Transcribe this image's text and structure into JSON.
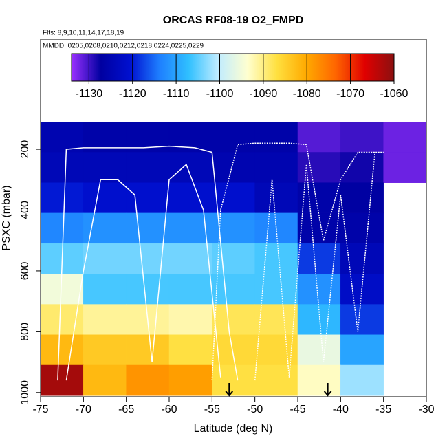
{
  "chart_data": {
    "type": "heatmap",
    "title": "ORCAS RF08-19 O2_FMPD",
    "subtitle": "Flts: 8,9,10,11,14,17,18,19",
    "annotation": "MMDD: 0205,0208,0210,0212,0218,0224,0225,0229",
    "x_label": "Latitude (deg N)",
    "y_label": "PSXC (mbar)",
    "xlim": [
      -75,
      -30
    ],
    "xticks": [
      -75,
      -70,
      -65,
      -60,
      -55,
      -50,
      -45,
      -40,
      -35,
      -30
    ],
    "ylim": [
      1014,
      -162
    ],
    "yticks": [
      200,
      400,
      600,
      800,
      1000
    ],
    "x_edges": [
      -75,
      -70,
      -65,
      -60,
      -55,
      -50,
      -45,
      -40,
      -35,
      -30
    ],
    "y_edges": [
      110,
      210,
      310,
      410,
      510,
      610,
      710,
      810,
      910,
      1010
    ],
    "values": [
      [
        -1125,
        -1126,
        -1126,
        -1126,
        -1126,
        -1126,
        -1131,
        -1130,
        -1132
      ],
      [
        -1124,
        -1124,
        -1124,
        -1124,
        -1125,
        -1125,
        -1129,
        -1128,
        -1132
      ],
      [
        -1120,
        -1121,
        -1121,
        -1121,
        -1121,
        -1124,
        -1126,
        -1127,
        null
      ],
      [
        -1113,
        -1112,
        -1112,
        -1112,
        -1112,
        -1113,
        -1126,
        -1126,
        null
      ],
      [
        -1105,
        -1104,
        -1104,
        -1104,
        -1105,
        -1106,
        -1118,
        -1124,
        null
      ],
      [
        -1095,
        -1106,
        -1106,
        -1106,
        -1106,
        -1106,
        -1112,
        -1122,
        null
      ],
      [
        -1089,
        -1091,
        -1091,
        -1092,
        -1088,
        -1088,
        -1108,
        -1118,
        null
      ],
      [
        -1082,
        -1084,
        -1084,
        -1087,
        -1086,
        -1086,
        -1096,
        -1110,
        null
      ],
      [
        -1062,
        -1082,
        -1078,
        -1079,
        -1087,
        -1087,
        -1093,
        -1102,
        null
      ]
    ],
    "clim": [
      -1134,
      -1060
    ],
    "colorbar_ticks": [
      -1130,
      -1120,
      -1110,
      -1100,
      -1090,
      -1080,
      -1070,
      -1060
    ],
    "colormap": [
      "#9a30ff",
      "#0000a0",
      "#0010d0",
      "#1e7fff",
      "#30c0ff",
      "#c0ecff",
      "#ffffd0",
      "#ffe040",
      "#ffaa00",
      "#ff6600",
      "#e00000",
      "#8b1010"
    ],
    "tracks": [
      {
        "x": [
          -73,
          -72,
          -70,
          -67,
          -63,
          -60,
          -57,
          -55,
          -53,
          -52
        ],
        "y": [
          960,
          200,
          195,
          195,
          195,
          190,
          195,
          210,
          800,
          960
        ]
      },
      {
        "x": [
          -55,
          -54,
          -52,
          -50,
          -48,
          -46,
          -44,
          -42,
          -40,
          -38,
          -35
        ],
        "y": [
          960,
          400,
          185,
          180,
          180,
          180,
          185,
          500,
          300,
          210,
          210
        ]
      },
      {
        "x": [
          -72,
          -70,
          -68,
          -66,
          -64,
          -62,
          -60,
          -58,
          -56,
          -54
        ],
        "y": [
          960,
          600,
          300,
          300,
          350,
          900,
          300,
          250,
          400,
          950
        ]
      },
      {
        "x": [
          -50,
          -48,
          -46,
          -44,
          -42,
          -40,
          -38,
          -36
        ],
        "y": [
          960,
          300,
          950,
          250,
          900,
          350,
          800,
          210
        ]
      }
    ],
    "track_color": "#ffffff",
    "arrows": [
      -53,
      -41.5
    ]
  }
}
